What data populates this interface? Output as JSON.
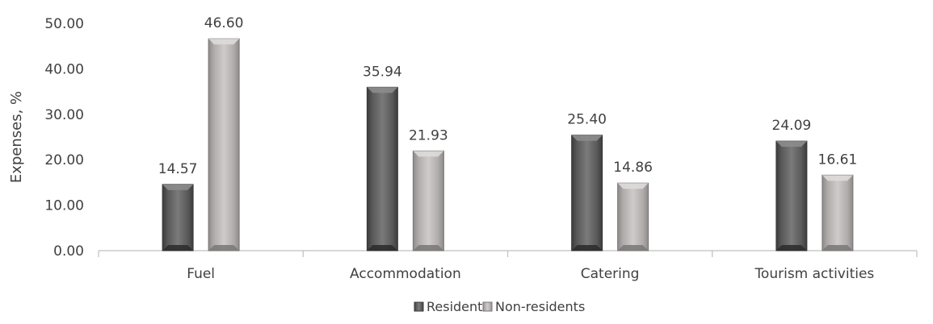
{
  "chart_data": {
    "type": "bar",
    "title": "",
    "xlabel": "",
    "ylabel": "Expenses, %",
    "ylim": [
      0,
      50
    ],
    "yticks": [
      "0.00",
      "10.00",
      "20.00",
      "30.00",
      "40.00",
      "50.00"
    ],
    "grid": false,
    "legend_position": "bottom",
    "categories": [
      "Fuel",
      "Accommodation",
      "Catering",
      "Tourism activities"
    ],
    "series": [
      {
        "name": "Residents",
        "values": [
          14.57,
          35.94,
          25.4,
          24.09
        ],
        "labels": [
          "14.57",
          "35.94",
          "25.40",
          "24.09"
        ],
        "color": "#6e6e6e"
      },
      {
        "name": "Non-residents",
        "values": [
          46.6,
          21.93,
          14.86,
          16.61
        ],
        "labels": [
          "46.60",
          "21.93",
          "14.86",
          "16.61"
        ],
        "color": "#b4b0b0"
      }
    ]
  }
}
